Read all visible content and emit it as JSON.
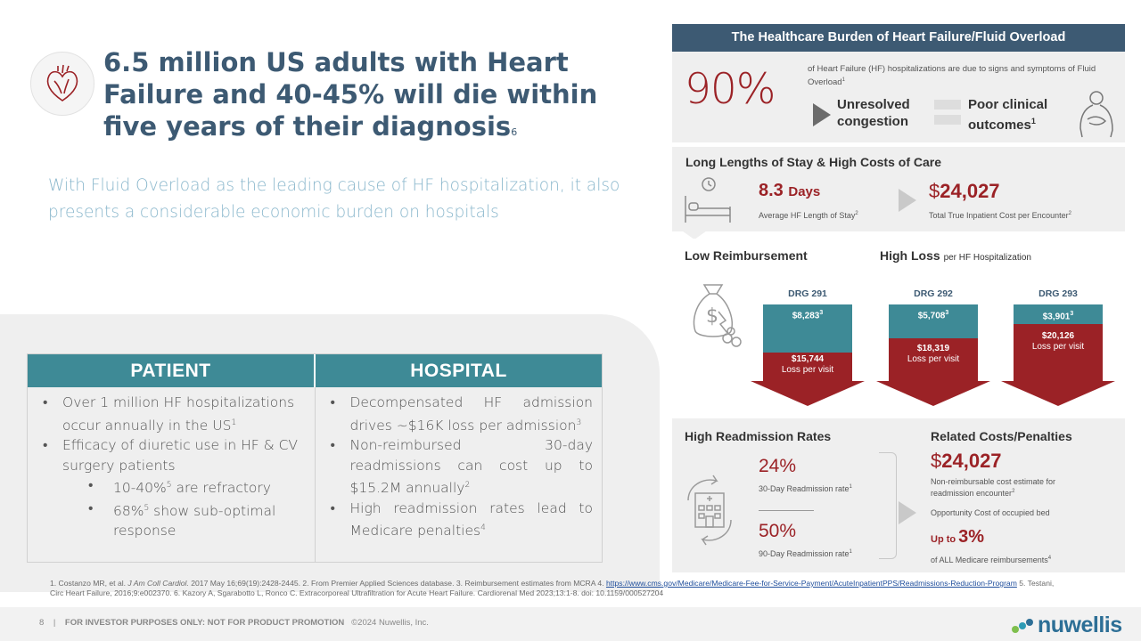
{
  "headline": {
    "text": "6.5 million US adults with Heart Failure and 40-45% will die within five years of their diagnosis",
    "footnote_ref": "6",
    "subhead": "With Fluid Overload as the leading cause of HF hospitalization, it also presents a considerable economic burden on hospitals"
  },
  "icons": {
    "heart": "heart-icon",
    "person": "patient-icon",
    "bed": "hospital-bed-icon",
    "money": "money-bag-icon",
    "hospital": "hospital-readmission-icon",
    "logo": "nuwellis-logo"
  },
  "table": {
    "patient_header": "PATIENT",
    "hospital_header": "HOSPITAL",
    "patient_items": [
      {
        "text": "Over 1 million HF hospitalizations occur annually in the US",
        "sup": "1"
      },
      {
        "text": "Efficacy of diuretic use in HF & CV surgery patients",
        "sup": ""
      }
    ],
    "patient_subitems": [
      {
        "pre": "10-40%",
        "sup": "5",
        "post": " are refractory"
      },
      {
        "pre": "68%",
        "sup": "5",
        "post": " show sub-optimal response"
      }
    ],
    "hospital_items": [
      {
        "text": "Decompensated HF admission drives ~$16K loss per admission",
        "sup": "3"
      },
      {
        "text": "Non-reimbursed 30-day readmissions can cost up to $15.2M annually",
        "sup": "2"
      },
      {
        "text": "High readmission rates lead to Medicare penalties",
        "sup": "4"
      }
    ]
  },
  "right": {
    "banner": "The Healthcare Burden of Heart Failure/Fluid Overload",
    "s1": {
      "big_stat": "90%",
      "desc": "of Heart Failure (HF) hospitalizations are due to signs and symptoms of Fluid Overload",
      "desc_sup": "1",
      "label1_line1": "Unresolved",
      "label1_line2": "congestion",
      "label2_line1": "Poor clinical",
      "label2_line2": "outcomes",
      "label2_sup": "1"
    },
    "s2": {
      "title": "Long Lengths of Stay & High Costs of Care",
      "stay_value": "8.3",
      "stay_unit": "Days",
      "stay_label": "Average HF Length of Stay",
      "stay_sup": "2",
      "cost_dollar": "$",
      "cost_value": "24,027",
      "cost_label": "Total True Inpatient Cost per Encounter",
      "cost_sup": "2"
    },
    "s3": {
      "title_left": "Low Reimbursement",
      "title_right": "High Loss",
      "title_right_small": "per HF Hospitalization",
      "drgs": [
        {
          "label": "DRG 291",
          "reimb": "$8,283",
          "reimb_sup": "3",
          "loss": "$15,744",
          "loss_label": "Loss per visit"
        },
        {
          "label": "DRG 292",
          "reimb": "$5,708",
          "reimb_sup": "3",
          "loss": "$18,319",
          "loss_label": "Loss per visit"
        },
        {
          "label": "DRG 293",
          "reimb": "$3,901",
          "reimb_sup": "3",
          "loss": "$20,126",
          "loss_label": "Loss per visit"
        }
      ]
    },
    "s4": {
      "title_left": "High Readmission Rates",
      "title_right": "Related Costs/Penalties",
      "rate1": "24%",
      "rate1_label": "30-Day Readmission rate",
      "rate1_sup": "1",
      "rate2": "50%",
      "rate2_label": "90-Day Readmission rate",
      "rate2_sup": "1",
      "cost_dollar": "$",
      "cost_value": "24,027",
      "cost_label": "Non-reimbursable cost estimate for readmission encounter",
      "cost_sup": "2",
      "opportunity": "Opportunity Cost of occupied bed",
      "upto_prefix": "Up to ",
      "upto_value": "3%",
      "upto_label": "of ALL Medicare reimbursements",
      "upto_sup": "4"
    }
  },
  "footnote": {
    "text_part1": "1. Costanzo MR, et al. ",
    "journal": "J Am Coll Cardiol.",
    "text_part2": " 2017 May 16;69(19):2428-2445. 2. From Premier Applied Sciences database. 3. Reimbursement estimates from MCRA   4. ",
    "link": "https://www.cms.gov/Medicare/Medicare-Fee-for-Service-Payment/AcuteInpatientPPS/Readmissions-Reduction-Program",
    "text_part3": " 5. Testani, Circ Heart Failure, 2016;9:e002370. 6. Kazory A, Sgarabotto L, Ronco C. Extracorporeal Ultrafiltration for Acute Heart Failure. Cardiorenal Med 2023;13:1-8. doi: 10.1159/000527204"
  },
  "footer": {
    "page": "8",
    "separator": "|",
    "disclaimer": "FOR INVESTOR PURPOSES ONLY: NOT FOR PRODUCT PROMOTION",
    "copyright": "©2024 Nuwellis, Inc.",
    "logo_text": "nuwellis"
  },
  "colors": {
    "title_blue": "#3d5a73",
    "teal": "#3e8a96",
    "dark_red": "#9b2226",
    "light_blue_text": "#8ab7cc",
    "panel_gray": "#efefef"
  }
}
